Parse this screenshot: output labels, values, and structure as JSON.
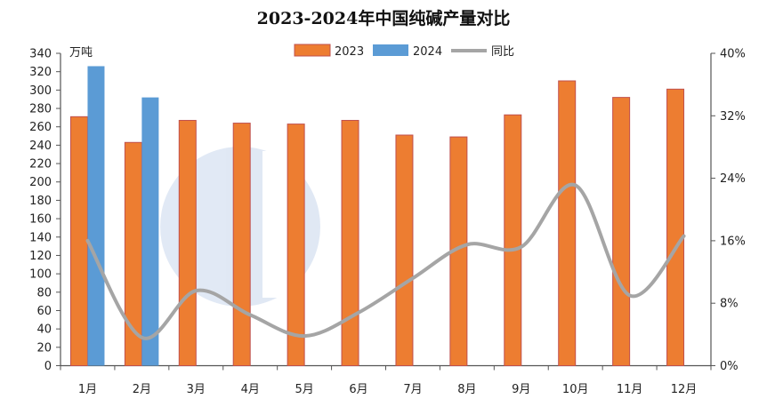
{
  "chart_data": {
    "type": "bar",
    "title": "2023-2024年中国纯碱产量对比",
    "ylabel": "万吨",
    "ylim": [
      0,
      340
    ],
    "yticks_step": 20,
    "y2lim": [
      0,
      40
    ],
    "y2ticks": [
      "0%",
      "8%",
      "16%",
      "24%",
      "32%",
      "40%"
    ],
    "y2ticks_values": [
      0,
      8,
      16,
      24,
      32,
      40
    ],
    "categories": [
      "1月",
      "2月",
      "3月",
      "4月",
      "5月",
      "6月",
      "7月",
      "8月",
      "9月",
      "10月",
      "11月",
      "12月"
    ],
    "series": [
      {
        "name": "2023",
        "type": "bar",
        "axis": "left",
        "color": "#ED7D31",
        "values": [
          271,
          243,
          267,
          264,
          263,
          267,
          251,
          249,
          273,
          310,
          292,
          301
        ]
      },
      {
        "name": "2024",
        "type": "bar",
        "axis": "left",
        "color": "#5B9BD5",
        "values": [
          326,
          292,
          null,
          null,
          null,
          null,
          null,
          null,
          null,
          null,
          null,
          null
        ]
      },
      {
        "name": "同比",
        "type": "line",
        "axis": "right",
        "unit": "%",
        "color": "#A5A5A5",
        "values": [
          16.0,
          3.6,
          9.6,
          6.5,
          3.8,
          6.8,
          11.2,
          15.5,
          15.2,
          23.1,
          9.0,
          16.6
        ]
      }
    ],
    "legend_position": "top-center",
    "grid": false
  }
}
